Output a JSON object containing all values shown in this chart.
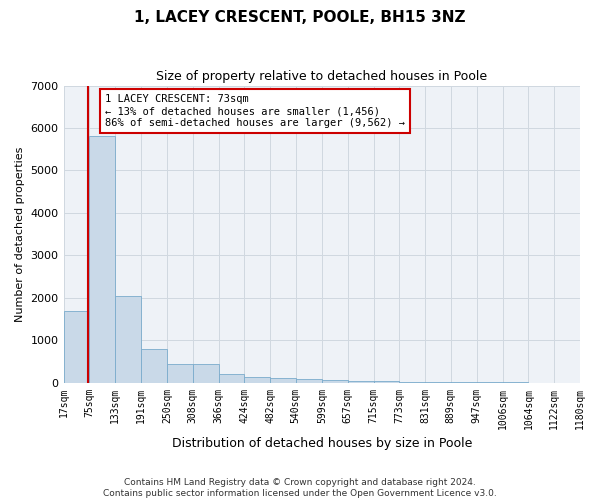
{
  "title": "1, LACEY CRESCENT, POOLE, BH15 3NZ",
  "subtitle": "Size of property relative to detached houses in Poole",
  "xlabel": "Distribution of detached houses by size in Poole",
  "ylabel": "Number of detached properties",
  "property_size": 73,
  "annotation_lines": [
    "1 LACEY CRESCENT: 73sqm",
    "← 13% of detached houses are smaller (1,456)",
    "86% of semi-detached houses are larger (9,562) →"
  ],
  "bin_edges": [
    17,
    75,
    133,
    191,
    250,
    308,
    366,
    424,
    482,
    540,
    599,
    657,
    715,
    773,
    831,
    889,
    947,
    1006,
    1064,
    1122,
    1180
  ],
  "bar_heights": [
    1700,
    5800,
    2050,
    800,
    430,
    430,
    205,
    140,
    120,
    80,
    65,
    50,
    35,
    20,
    15,
    10,
    8,
    5,
    4,
    3
  ],
  "bar_color": "#c9d9e8",
  "bar_edgecolor": "#7aabcc",
  "red_line_color": "#cc0000",
  "annotation_box_edgecolor": "#cc0000",
  "annotation_box_facecolor": "#ffffff",
  "grid_color": "#d0d8e0",
  "background_color": "#eef2f7",
  "ylim": [
    0,
    7000
  ],
  "footer_line1": "Contains HM Land Registry data © Crown copyright and database right 2024.",
  "footer_line2": "Contains public sector information licensed under the Open Government Licence v3.0."
}
